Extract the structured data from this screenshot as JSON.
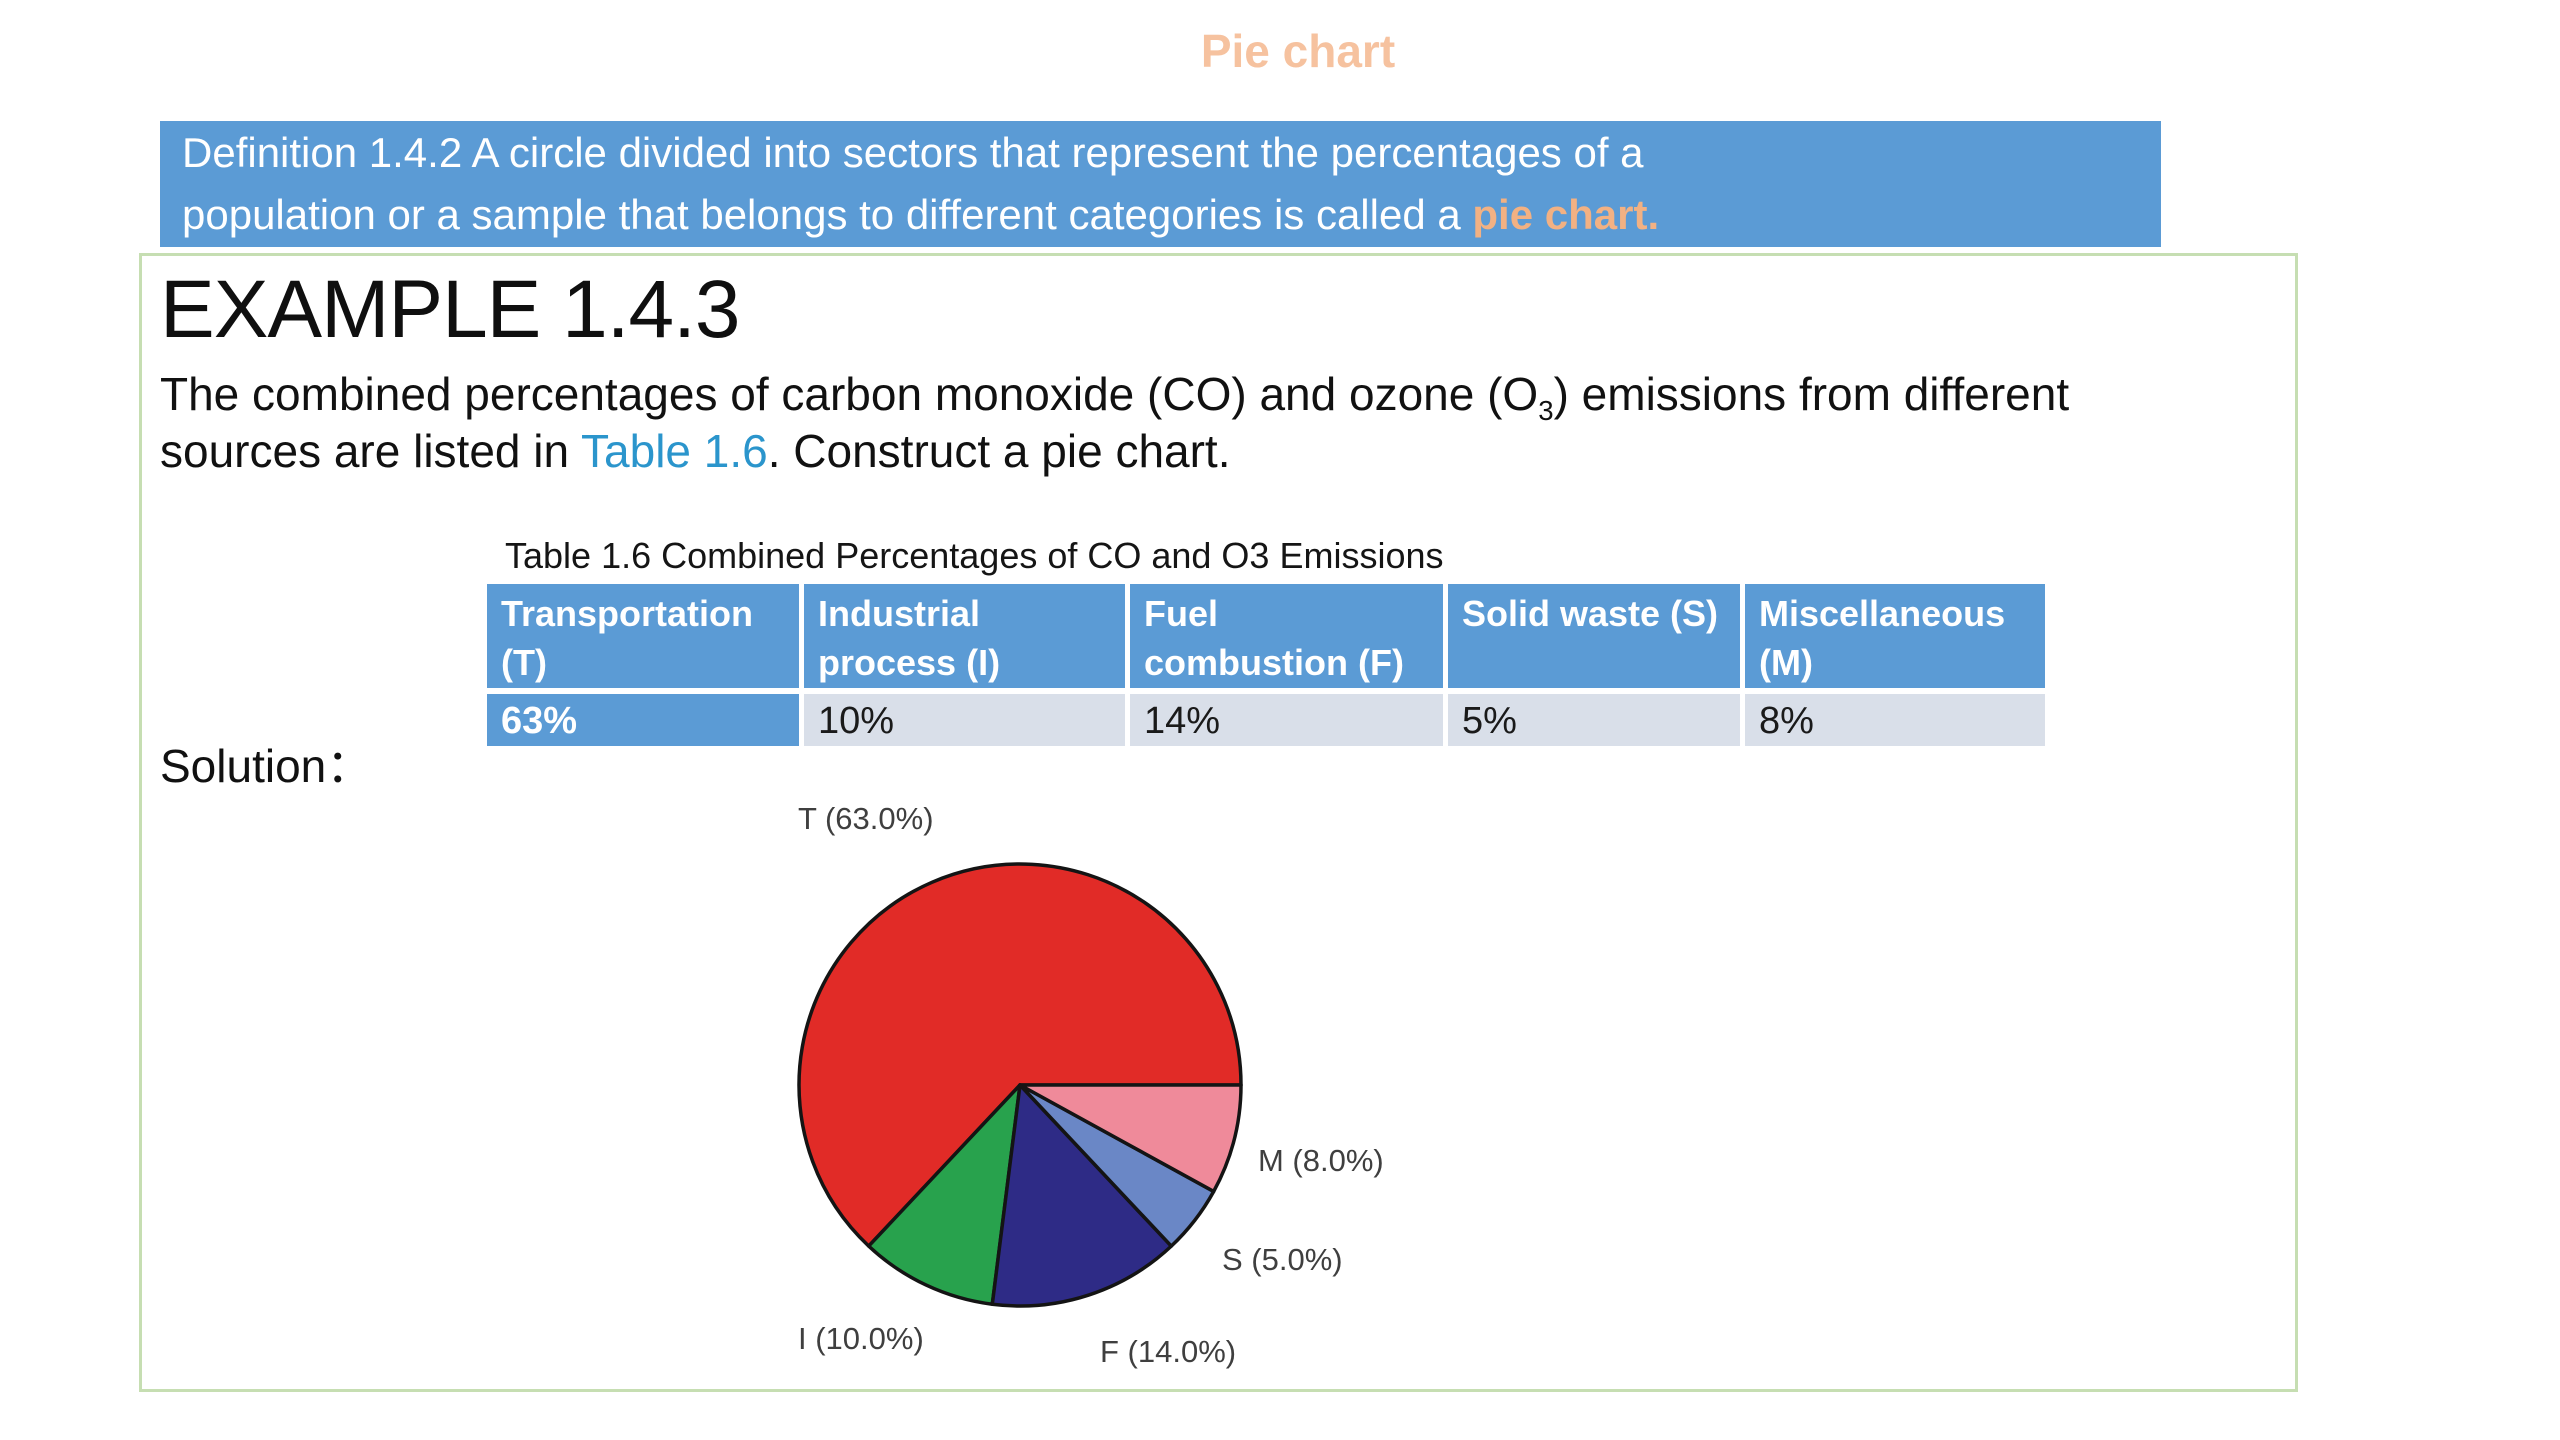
{
  "page": {
    "title": "Pie chart"
  },
  "definition_box": {
    "line1": "Definition 1.4.2 A circle divided into sectors that represent the percentages of a",
    "line2_pre": "population or a sample that belongs to different categories is called a ",
    "line2_highlight": "pie chart",
    "line2_end": "."
  },
  "example": {
    "heading": "EXAMPLE 1.4.3",
    "line1_pre": "The combined percentages of carbon monoxide (CO) and ozone  (O",
    "line1_sub": "3",
    "line1_post": ") emissions from different",
    "line2_pre": "sources are listed in ",
    "line2_link": "Table 1.6",
    "line2_post": ". Construct a pie chart.",
    "solution_label": "Solution："
  },
  "table": {
    "caption": "Table 1.6 Combined Percentages of CO and O3 Emissions",
    "columns": [
      {
        "header_line1": "Transportation",
        "header_line2": "(T)",
        "value": "63%",
        "value_highlight": true
      },
      {
        "header_line1": "Industrial",
        "header_line2": "process (I)",
        "value": "10%",
        "value_highlight": false
      },
      {
        "header_line1": "Fuel",
        "header_line2": "combustion (F)",
        "value": "14%",
        "value_highlight": false
      },
      {
        "header_line1": "Solid waste (S)",
        "header_line2": "",
        "value": "5%",
        "value_highlight": false
      },
      {
        "header_line1": "Miscellaneous",
        "header_line2": "(M)",
        "value": "8%",
        "value_highlight": false
      }
    ]
  },
  "chart_data": {
    "type": "pie",
    "title": "",
    "categories": [
      "Transportation (T)",
      "Industrial process (I)",
      "Fuel combustion (F)",
      "Solid waste (S)",
      "Miscellaneous (M)"
    ],
    "values": [
      63,
      10,
      14,
      5,
      8
    ],
    "unit": "percent",
    "slice_labels": [
      "T (63.0%)",
      "I (10.0%)",
      "F (14.0%)",
      "S (5.0%)",
      "M (8.0%)"
    ],
    "colors": [
      "#e12b27",
      "#28a24d",
      "#2e2b86",
      "#6a87c6",
      "#ef8a9a"
    ],
    "start_angle_deg": 0,
    "direction": "counterclockwise",
    "legend": "none",
    "outline_color": "#141414"
  },
  "colors": {
    "title_text": "#f6c29f",
    "definition_bg": "#5b9bd5",
    "definition_text": "#ffffff",
    "definition_highlight": "#f2b183",
    "example_border": "#c6deb2",
    "link": "#2b95cc",
    "table_header_bg": "#5b9bd5",
    "table_value_bg": "#d9dfe9",
    "pie_label_text": "#3f3f3f"
  }
}
